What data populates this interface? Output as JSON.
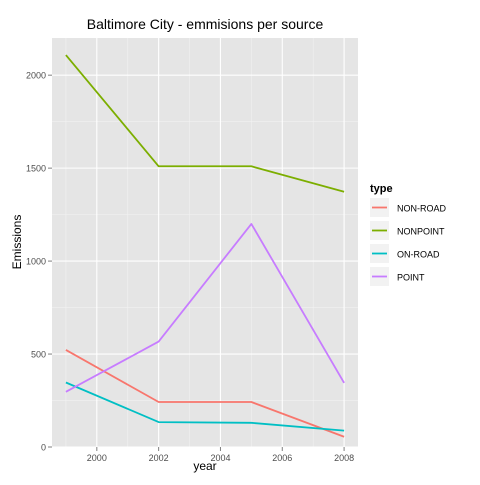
{
  "chart_data": {
    "type": "line",
    "title": "Baltimore City - emmisions per source",
    "xlabel": "year",
    "ylabel": "Emissions",
    "xlim": [
      1998.55,
      2008.45
    ],
    "ylim": [
      0,
      2200
    ],
    "x": [
      1999,
      2002,
      2005,
      2008
    ],
    "x_ticks": [
      2000,
      2002,
      2004,
      2006,
      2008
    ],
    "y_ticks": [
      0,
      500,
      1000,
      1500,
      2000
    ],
    "grid": true,
    "legend": {
      "title": "type",
      "position": "right"
    },
    "series": [
      {
        "name": "NON-ROAD",
        "color": "#F8766D",
        "values": [
          522,
          242,
          242,
          55
        ]
      },
      {
        "name": "NONPOINT",
        "color": "#7CAE00",
        "values": [
          2108,
          1510,
          1510,
          1373
        ]
      },
      {
        "name": "ON-ROAD",
        "color": "#00BFC4",
        "values": [
          347,
          134,
          130,
          88
        ]
      },
      {
        "name": "POINT",
        "color": "#C77CFF",
        "values": [
          297,
          567,
          1200,
          345
        ]
      }
    ]
  }
}
